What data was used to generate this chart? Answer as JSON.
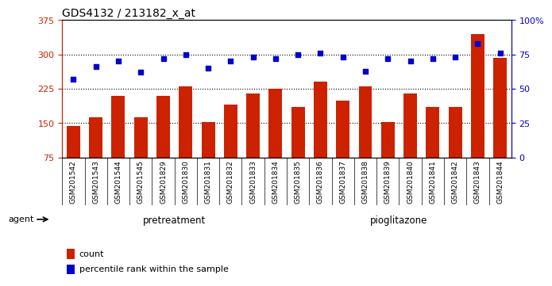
{
  "title": "GDS4132 / 213182_x_at",
  "samples": [
    "GSM201542",
    "GSM201543",
    "GSM201544",
    "GSM201545",
    "GSM201829",
    "GSM201830",
    "GSM201831",
    "GSM201832",
    "GSM201833",
    "GSM201834",
    "GSM201835",
    "GSM201836",
    "GSM201837",
    "GSM201838",
    "GSM201839",
    "GSM201840",
    "GSM201841",
    "GSM201842",
    "GSM201843",
    "GSM201844"
  ],
  "counts": [
    143,
    162,
    210,
    162,
    210,
    230,
    153,
    190,
    215,
    225,
    185,
    240,
    200,
    230,
    153,
    215,
    185,
    185,
    345,
    292
  ],
  "percentiles": [
    57,
    66,
    70,
    62,
    72,
    75,
    65,
    70,
    73,
    72,
    75,
    76,
    73,
    63,
    72,
    70,
    72,
    73,
    83,
    76
  ],
  "pretreatment_count": 10,
  "pioglitazone_count": 10,
  "bar_color": "#CC2200",
  "dot_color": "#0000CC",
  "ylim_left": [
    75,
    375
  ],
  "ylim_right": [
    0,
    100
  ],
  "yticks_left": [
    75,
    150,
    225,
    300,
    375
  ],
  "yticks_right": [
    0,
    25,
    50,
    75,
    100
  ],
  "yticklabels_right": [
    "0",
    "25",
    "50",
    "75",
    "100%"
  ],
  "grid_values": [
    150,
    225,
    300
  ],
  "pretreatment_color": "#99EE99",
  "pioglitazone_color": "#55DD55",
  "agent_label": "agent",
  "pretreatment_label": "pretreatment",
  "pioglitazone_label": "pioglitazone",
  "legend_count_label": "count",
  "legend_percentile_label": "percentile rank within the sample",
  "bg_color": "#C8C8C8"
}
